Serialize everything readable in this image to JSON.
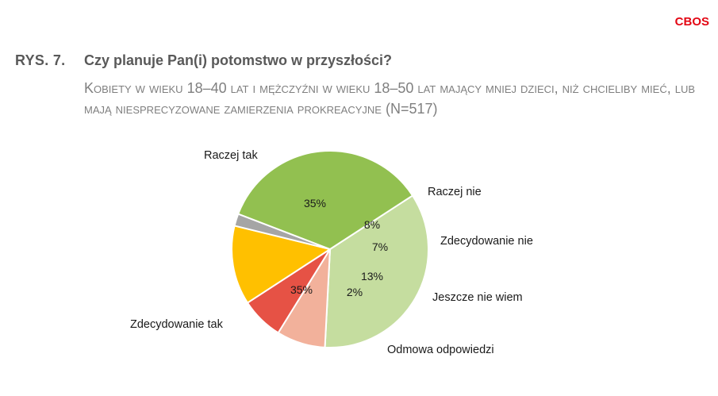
{
  "brand": "CBOS",
  "figure_label": "RYS. 7.",
  "title": "Czy planuje Pan(i) potomstwo w przyszłości?",
  "subtitle": "Kobiety w wieku 18–40 lat i mężczyźni w wieku 18–50 lat mający mniej dzieci, niż chcieliby mieć, lub mają niesprecyzowane zamierzenia prokreacyjne (N=517)",
  "chart_data": {
    "type": "pie",
    "title": "Czy planuje Pan(i) potomstwo w przyszłości?",
    "slices": [
      {
        "label": "Raczej tak",
        "value": 35,
        "value_label": "35%",
        "color": "#c5dd9f"
      },
      {
        "label": "Raczej nie",
        "value": 8,
        "value_label": "8%",
        "color": "#f2b19b"
      },
      {
        "label": "Zdecydowanie nie",
        "value": 7,
        "value_label": "7%",
        "color": "#e65245"
      },
      {
        "label": "Jeszcze nie wiem",
        "value": 13,
        "value_label": "13%",
        "color": "#ffc000"
      },
      {
        "label": "Odmowa odpowiedzi",
        "value": 2,
        "value_label": "2%",
        "color": "#a5a5a5"
      },
      {
        "label": "Zdecydowanie tak",
        "value": 35,
        "value_label": "35%",
        "color": "#92c050"
      }
    ]
  }
}
